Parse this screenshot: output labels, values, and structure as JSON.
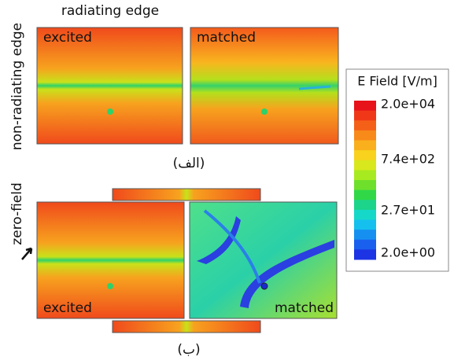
{
  "header": {
    "title": "radiating edge",
    "side_label": "non-radiating edge"
  },
  "panel_a": {
    "left_label": "excited",
    "right_label": "matched",
    "caption": "(الف)"
  },
  "panel_b": {
    "annotation": "zero-field",
    "left_label": "excited",
    "right_label": "matched",
    "caption": "(ب)"
  },
  "colorbar": {
    "title": "E Field [V/m]",
    "labels": [
      "2.0e+04",
      "7.4e+02",
      "2.7e+01",
      "2.0e+00"
    ]
  }
}
